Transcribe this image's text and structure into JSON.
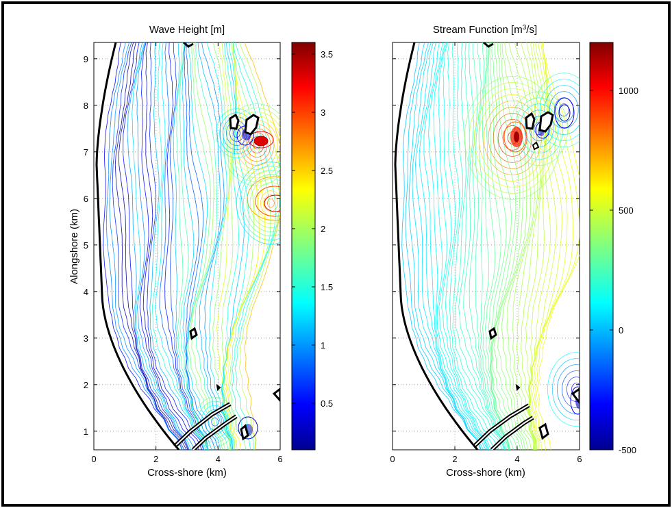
{
  "figure": {
    "frame_color": "#000000"
  },
  "chart_data": [
    {
      "type": "contour",
      "title": "Wave Height [m]",
      "xlabel": "Cross-shore (km)",
      "ylabel": "Alongshore (km)",
      "xlim": [
        0,
        6
      ],
      "ylim": [
        0.6,
        9.35
      ],
      "xticks": [
        "0",
        "2",
        "4",
        "6"
      ],
      "xtick_values": [
        0,
        2,
        4,
        6
      ],
      "yticks": [
        "1",
        "2",
        "3",
        "4",
        "5",
        "6",
        "7",
        "8",
        "9"
      ],
      "ytick_values": [
        1,
        2,
        3,
        4,
        5,
        6,
        7,
        8,
        9
      ],
      "grid": true,
      "colorbar": {
        "range": [
          0.1,
          3.6
        ],
        "ticks": [
          "0.5",
          "1",
          "1.5",
          "2",
          "2.5",
          "3",
          "3.5"
        ],
        "tick_values": [
          0.5,
          1,
          1.5,
          2,
          2.5,
          3,
          3.5
        ],
        "colormap": "jet"
      },
      "features": [
        {
          "kind": "hotspot",
          "x": 5.25,
          "y": 7.15,
          "value": 3.4
        },
        {
          "kind": "hotspot",
          "x": 5.7,
          "y": 5.9,
          "value": 2.9
        },
        {
          "kind": "low",
          "x": 4.6,
          "y": 7.4,
          "value": 0.3
        },
        {
          "kind": "low",
          "x": 3.9,
          "y": 1.2,
          "value": 0.6
        }
      ]
    },
    {
      "type": "contour",
      "title": "Stream Function [m3/s]",
      "title_main": "Stream Function [m",
      "title_sup": "3",
      "title_end": "/s]",
      "xlabel": "Cross-shore (km)",
      "ylabel": "",
      "xlim": [
        0,
        6
      ],
      "ylim": [
        0.6,
        9.35
      ],
      "xticks": [
        "0",
        "2",
        "4",
        "6"
      ],
      "xtick_values": [
        0,
        2,
        4,
        6
      ],
      "yticks": [],
      "ytick_values": [
        1,
        2,
        3,
        4,
        5,
        6,
        7,
        8,
        9
      ],
      "grid": true,
      "colorbar": {
        "range": [
          -500,
          1200
        ],
        "ticks": [
          "-500",
          "0",
          "500",
          "1000"
        ],
        "tick_values": [
          -500,
          0,
          500,
          1000
        ],
        "colormap": "jet"
      },
      "features": [
        {
          "kind": "hotspot",
          "x": 3.85,
          "y": 7.3,
          "value": 1150
        },
        {
          "kind": "low",
          "x": 5.5,
          "y": 7.9,
          "value": -350
        },
        {
          "kind": "low",
          "x": 5.9,
          "y": 1.9,
          "value": -450
        },
        {
          "kind": "low",
          "x": 4.7,
          "y": 7.5,
          "value": -250
        }
      ]
    }
  ]
}
